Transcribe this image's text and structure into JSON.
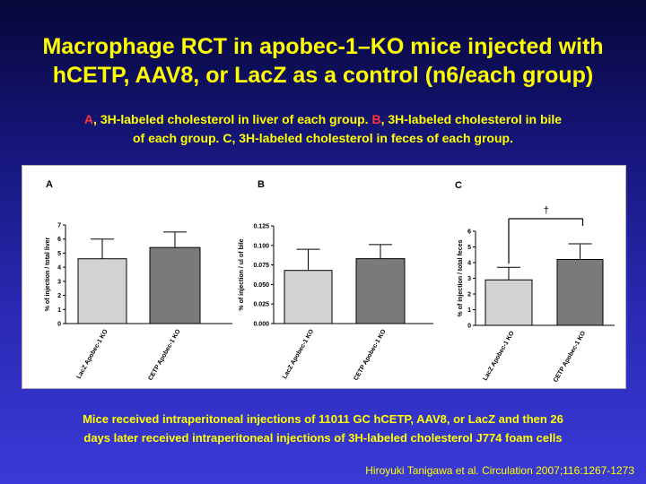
{
  "slide": {
    "title_line1": "Macrophage RCT in apobec-1–KO mice injected with",
    "title_line2": "hCETP, AAV8, or LacZ as a control (n6/each group)",
    "subtitle_a": "A",
    "subtitle_line1_rest": ", 3H-labeled cholesterol in liver of each group. ",
    "subtitle_b": "B",
    "subtitle_line1_end": ", 3H-labeled cholesterol in bile",
    "subtitle_line2": "of each group. C, 3H-labeled cholesterol in feces of each group.",
    "note_line1": "Mice received intraperitoneal injections of 11011 GC hCETP, AAV8, or LacZ and then 26",
    "note_line2": "days later received intraperitoneal injections of 3H-labeled cholesterol J774 foam cells",
    "citation": "Hiroyuki Tanigawa et al. Circulation 2007;116:1267-1273"
  },
  "chart_data": [
    {
      "type": "bar",
      "panel_label": "A",
      "categories": [
        "LacZ Apobec-1 KO",
        "CETP Apobec-1 KO"
      ],
      "values": [
        4.6,
        5.4
      ],
      "errors": [
        1.4,
        1.1
      ],
      "colors": [
        "#d2d2d2",
        "#7a7a7a"
      ],
      "ylabel": "% of injection / total liver",
      "ylim": [
        0,
        7
      ],
      "yticks": [
        "0",
        "1",
        "2",
        "3",
        "4",
        "5",
        "6",
        "7"
      ],
      "significance": ""
    },
    {
      "type": "bar",
      "panel_label": "B",
      "categories": [
        "LacZ Apobec-1 KO",
        "CETP Apobec-1 KO"
      ],
      "values": [
        0.068,
        0.083
      ],
      "errors": [
        0.027,
        0.018
      ],
      "colors": [
        "#d2d2d2",
        "#7a7a7a"
      ],
      "ylabel": "% of injection / ul of bile",
      "ylim": [
        0,
        0.125
      ],
      "yticks": [
        "0.000",
        "0.025",
        "0.050",
        "0.075",
        "0.100",
        "0.125"
      ],
      "significance": ""
    },
    {
      "type": "bar",
      "panel_label": "C",
      "categories": [
        "LacZ Apobec-1 KO",
        "CETP Apobec-1 KO"
      ],
      "values": [
        2.9,
        4.2
      ],
      "errors": [
        0.8,
        1.0
      ],
      "colors": [
        "#d2d2d2",
        "#7a7a7a"
      ],
      "ylabel": "% of injection / total feces",
      "ylim": [
        0,
        6
      ],
      "yticks": [
        "0",
        "1",
        "2",
        "3",
        "4",
        "5",
        "6"
      ],
      "significance": "†"
    }
  ]
}
